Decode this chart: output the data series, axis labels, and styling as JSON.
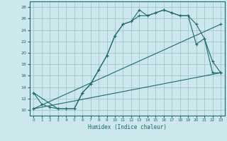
{
  "xlabel": "Humidex (Indice chaleur)",
  "bg_color": "#cce8ec",
  "grid_color": "#9dbfc8",
  "line_color": "#1a6b6b",
  "xlim": [
    -0.5,
    23.5
  ],
  "ylim": [
    9,
    29
  ],
  "xticks": [
    0,
    1,
    2,
    3,
    4,
    5,
    6,
    7,
    8,
    9,
    10,
    11,
    12,
    13,
    14,
    15,
    16,
    17,
    18,
    19,
    20,
    21,
    22,
    23
  ],
  "yticks": [
    10,
    12,
    14,
    16,
    18,
    20,
    22,
    24,
    26,
    28
  ],
  "line1_x": [
    0,
    1,
    2,
    3,
    4,
    5,
    6,
    7,
    8,
    9,
    10,
    11,
    12,
    13,
    14,
    15,
    16,
    17,
    18,
    19,
    20,
    21,
    22,
    23
  ],
  "line1_y": [
    13,
    11,
    10.5,
    10.2,
    10.2,
    10.2,
    13,
    14.5,
    17,
    19.5,
    23,
    25,
    25.5,
    27.5,
    26.5,
    27,
    27.5,
    27,
    26.5,
    26.5,
    25,
    22.5,
    16.5,
    16.5
  ],
  "line2_x": [
    0,
    3,
    4,
    5,
    6,
    7,
    8,
    9,
    10,
    11,
    12,
    13,
    14,
    15,
    16,
    17,
    18,
    19,
    20,
    21,
    22,
    23
  ],
  "line2_y": [
    13,
    10.2,
    10.2,
    10.2,
    13,
    14.5,
    17,
    19.5,
    23,
    25,
    25.5,
    26.5,
    26.5,
    27,
    27.5,
    27,
    26.5,
    26.5,
    21.5,
    22.5,
    18.5,
    16.5
  ],
  "line3_x": [
    0,
    23
  ],
  "line3_y": [
    10.2,
    25
  ],
  "line4_x": [
    0,
    23
  ],
  "line4_y": [
    10.2,
    16.5
  ],
  "marker": "+"
}
